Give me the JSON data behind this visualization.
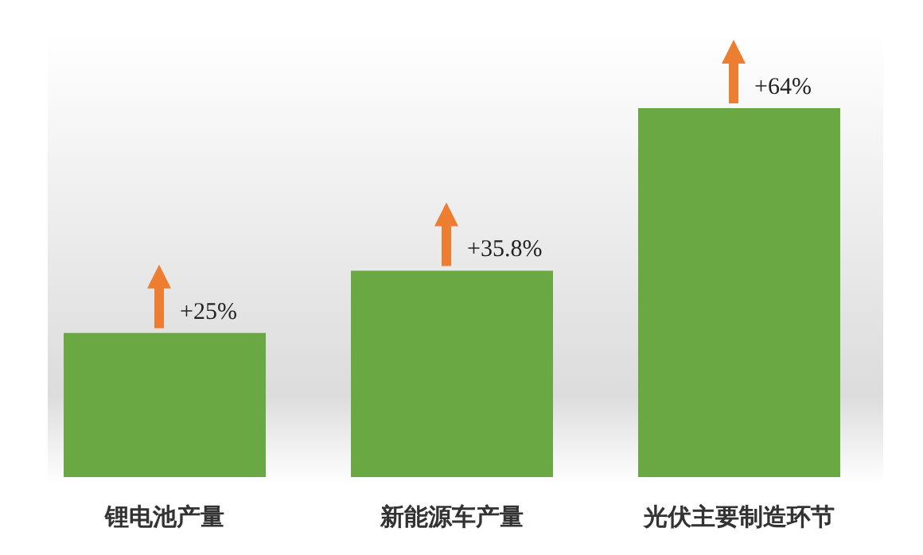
{
  "chart_data": {
    "type": "bar",
    "categories": [
      "锂电池产量",
      "新能源车产量",
      "光伏主要制造环节"
    ],
    "values": [
      25,
      35.8,
      64
    ],
    "value_labels": [
      "+25%",
      "+35.8%",
      "+64%"
    ],
    "color": "#6aa843"
  }
}
